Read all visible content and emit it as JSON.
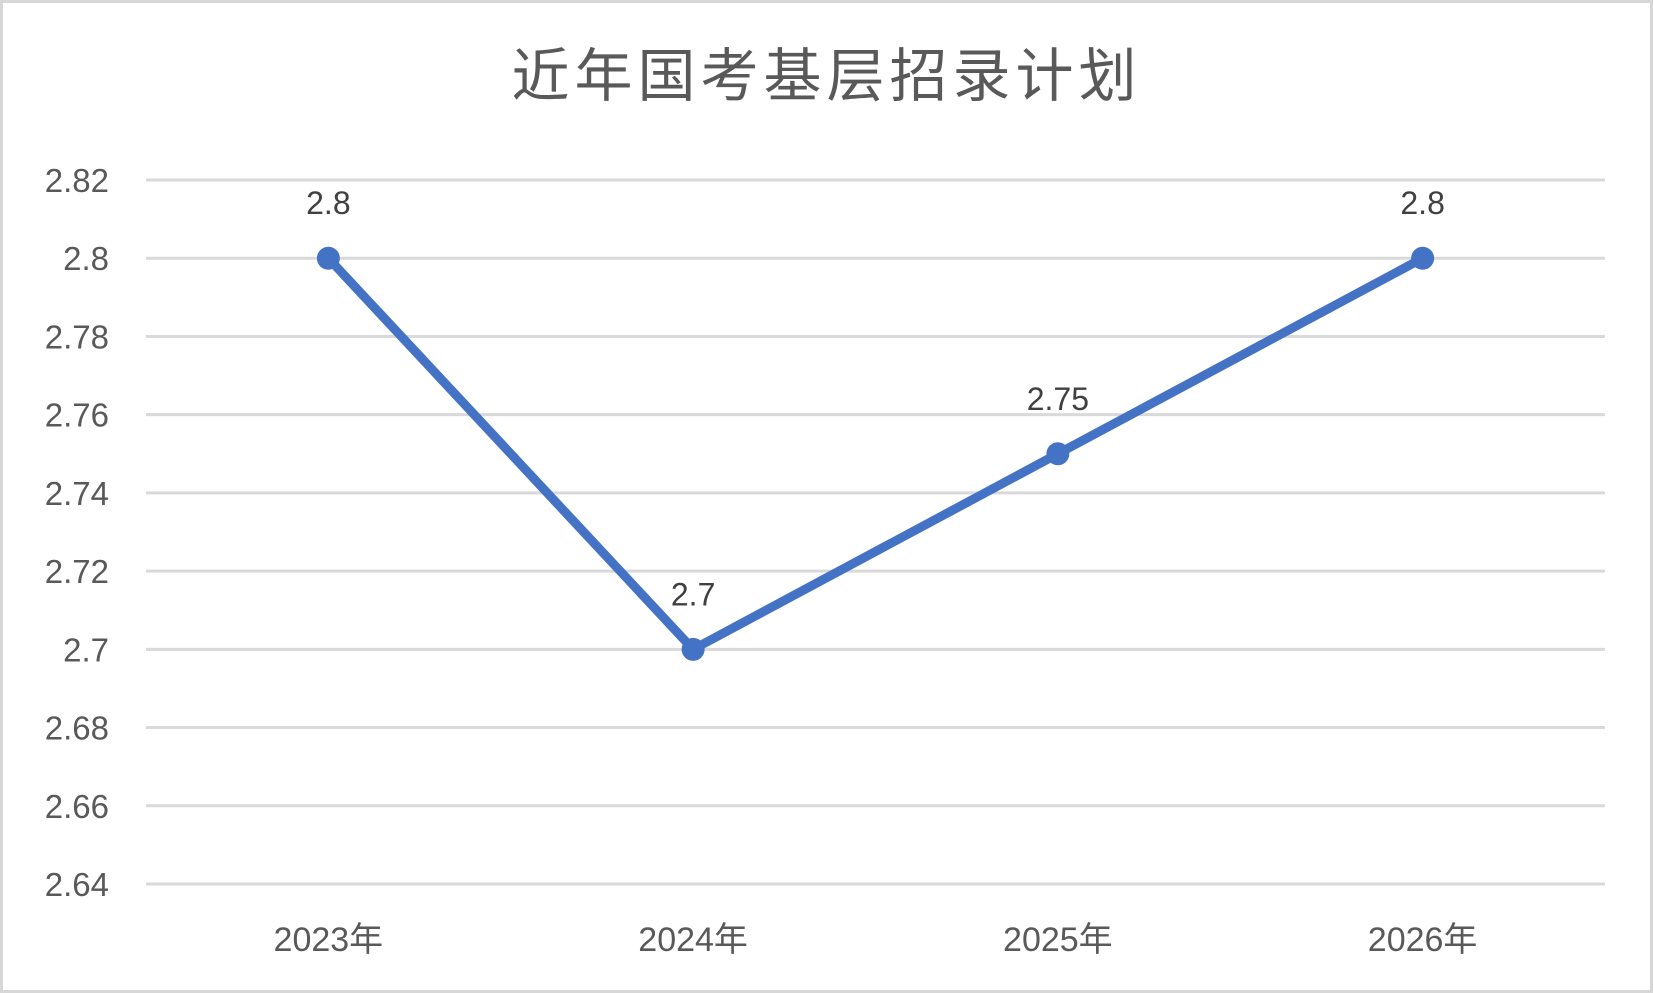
{
  "chart_data": {
    "type": "line",
    "title": "近年国考基层招录计划",
    "categories": [
      "2023年",
      "2024年",
      "2025年",
      "2026年"
    ],
    "values": [
      2.8,
      2.7,
      2.75,
      2.8
    ],
    "data_labels": [
      "2.8",
      "2.7",
      "2.75",
      "2.8"
    ],
    "y_tick_labels": [
      "2.82",
      "2.8",
      "2.78",
      "2.76",
      "2.74",
      "2.72",
      "2.7",
      "2.68",
      "2.66",
      "2.64"
    ],
    "ylim": [
      2.64,
      2.82
    ],
    "ytick_step": 0.02,
    "xlabel": "",
    "ylabel": "",
    "grid": true,
    "legend": false,
    "colors": {
      "line": "#4472C4",
      "marker": "#4472C4",
      "gridline": "#D9D9D9",
      "axis_text": "#595959",
      "data_label_text": "#404040",
      "title_text": "#595959",
      "frame_border": "#D7D7D7",
      "background": "#FFFFFF"
    }
  }
}
